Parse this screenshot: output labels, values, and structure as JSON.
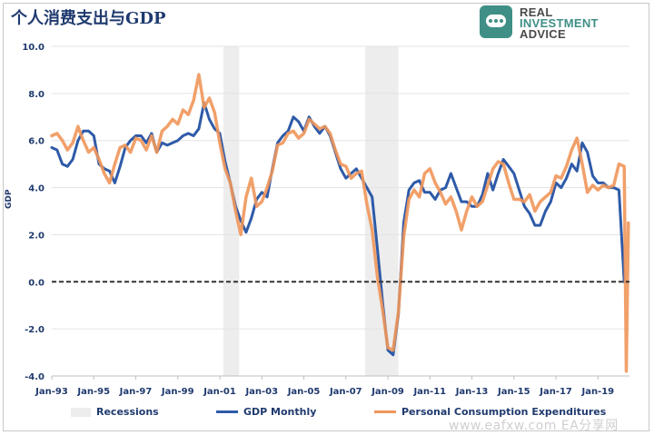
{
  "title": "个人消费支出与GDP",
  "logo": {
    "line1": "REAL",
    "line2": "INVESTMENT",
    "line3": "ADVICE"
  },
  "watermark": "www.eafxw.com  EA分享网",
  "chart_data": {
    "type": "line",
    "title": "个人消费支出与GDP",
    "xlabel": "",
    "ylabel": "GDP",
    "ylim": [
      -4.0,
      10.0
    ],
    "yticks": [
      -4.0,
      -2.0,
      0.0,
      2.0,
      4.0,
      6.0,
      8.0,
      10.0
    ],
    "ytick_labels": [
      "-4.0",
      "-2.0",
      "0.0",
      "2.0",
      "4.0",
      "6.0",
      "8.0",
      "10.0"
    ],
    "xlim": [
      1993.0,
      2020.5
    ],
    "xticks": [
      1993,
      1995,
      1997,
      1999,
      2001,
      2003,
      2005,
      2007,
      2009,
      2011,
      2013,
      2015,
      2017,
      2019
    ],
    "xtick_labels": [
      "Jan-93",
      "Jan-95",
      "Jan-97",
      "Jan-99",
      "Jan-01",
      "Jan-03",
      "Jan-05",
      "Jan-07",
      "Jan-09",
      "Jan-11",
      "Jan-13",
      "Jan-15",
      "Jan-17",
      "Jan-19"
    ],
    "grid": "horizontal",
    "legend": "bottom",
    "recessions": [
      [
        2001.17,
        2001.92
      ],
      [
        2007.92,
        2009.5
      ]
    ],
    "zero_line": 0.0,
    "series": [
      {
        "name": "GDP Monthly",
        "color": "#2e5aa8",
        "x": [
          1993.0,
          1993.25,
          1993.5,
          1993.75,
          1994.0,
          1994.25,
          1994.5,
          1994.75,
          1995.0,
          1995.25,
          1995.5,
          1995.75,
          1996.0,
          1996.25,
          1996.5,
          1996.75,
          1997.0,
          1997.25,
          1997.5,
          1997.75,
          1998.0,
          1998.25,
          1998.5,
          1998.75,
          1999.0,
          1999.25,
          1999.5,
          1999.75,
          2000.0,
          2000.25,
          2000.5,
          2000.75,
          2001.0,
          2001.25,
          2001.5,
          2001.75,
          2002.0,
          2002.25,
          2002.5,
          2002.75,
          2003.0,
          2003.25,
          2003.5,
          2003.75,
          2004.0,
          2004.25,
          2004.5,
          2004.75,
          2005.0,
          2005.25,
          2005.5,
          2005.75,
          2006.0,
          2006.25,
          2006.5,
          2006.75,
          2007.0,
          2007.25,
          2007.5,
          2007.75,
          2008.0,
          2008.25,
          2008.5,
          2008.75,
          2009.0,
          2009.25,
          2009.5,
          2009.75,
          2010.0,
          2010.25,
          2010.5,
          2010.75,
          2011.0,
          2011.25,
          2011.5,
          2011.75,
          2012.0,
          2012.25,
          2012.5,
          2012.75,
          2013.0,
          2013.25,
          2013.5,
          2013.75,
          2014.0,
          2014.25,
          2014.5,
          2014.75,
          2015.0,
          2015.25,
          2015.5,
          2015.75,
          2016.0,
          2016.25,
          2016.5,
          2016.75,
          2017.0,
          2017.25,
          2017.5,
          2017.75,
          2018.0,
          2018.25,
          2018.5,
          2018.75,
          2019.0,
          2019.25,
          2019.5,
          2019.75,
          2020.0,
          2020.25
        ],
        "values": [
          5.7,
          5.6,
          5.0,
          4.9,
          5.2,
          6.0,
          6.4,
          6.4,
          6.2,
          5.0,
          4.8,
          4.7,
          4.2,
          4.9,
          5.7,
          6.0,
          6.2,
          6.2,
          5.9,
          6.3,
          5.5,
          5.9,
          5.8,
          5.9,
          6.0,
          6.2,
          6.3,
          6.2,
          6.5,
          7.6,
          6.9,
          6.5,
          6.3,
          5.1,
          4.2,
          3.2,
          2.6,
          2.1,
          2.7,
          3.5,
          3.8,
          3.6,
          4.8,
          5.9,
          6.2,
          6.4,
          7.0,
          6.8,
          6.4,
          7.0,
          6.6,
          6.3,
          6.6,
          6.2,
          5.5,
          4.8,
          4.4,
          4.6,
          4.8,
          4.4,
          4.0,
          3.6,
          1.4,
          -0.9,
          -2.9,
          -3.1,
          -1.4,
          2.5,
          3.9,
          4.2,
          4.3,
          3.8,
          3.8,
          3.5,
          3.9,
          4.0,
          4.6,
          4.0,
          3.4,
          3.4,
          3.2,
          3.2,
          3.7,
          4.6,
          3.9,
          4.6,
          5.2,
          4.9,
          4.6,
          3.9,
          3.2,
          2.9,
          2.4,
          2.4,
          3.0,
          3.4,
          4.2,
          4.0,
          4.4,
          5.0,
          4.7,
          5.9,
          5.5,
          4.5,
          4.2,
          4.2,
          4.0,
          4.0,
          3.9,
          0.0
        ]
      },
      {
        "name": "Personal Consumption Expenditures",
        "color": "#f0965a",
        "x": [
          1993.0,
          1993.25,
          1993.5,
          1993.75,
          1994.0,
          1994.25,
          1994.5,
          1994.75,
          1995.0,
          1995.25,
          1995.5,
          1995.75,
          1996.0,
          1996.25,
          1996.5,
          1996.75,
          1997.0,
          1997.25,
          1997.5,
          1997.75,
          1998.0,
          1998.25,
          1998.5,
          1998.75,
          1999.0,
          1999.25,
          1999.5,
          1999.75,
          2000.0,
          2000.25,
          2000.5,
          2000.75,
          2001.0,
          2001.25,
          2001.5,
          2001.75,
          2002.0,
          2002.25,
          2002.5,
          2002.75,
          2003.0,
          2003.25,
          2003.5,
          2003.75,
          2004.0,
          2004.25,
          2004.5,
          2004.75,
          2005.0,
          2005.25,
          2005.5,
          2005.75,
          2006.0,
          2006.25,
          2006.5,
          2006.75,
          2007.0,
          2007.25,
          2007.5,
          2007.75,
          2008.0,
          2008.25,
          2008.5,
          2008.75,
          2009.0,
          2009.25,
          2009.5,
          2009.75,
          2010.0,
          2010.25,
          2010.5,
          2010.75,
          2011.0,
          2011.25,
          2011.5,
          2011.75,
          2012.0,
          2012.25,
          2012.5,
          2012.75,
          2013.0,
          2013.25,
          2013.5,
          2013.75,
          2014.0,
          2014.25,
          2014.5,
          2014.75,
          2015.0,
          2015.25,
          2015.5,
          2015.75,
          2016.0,
          2016.25,
          2016.5,
          2016.75,
          2017.0,
          2017.25,
          2017.5,
          2017.75,
          2018.0,
          2018.25,
          2018.5,
          2018.75,
          2019.0,
          2019.25,
          2019.5,
          2019.75,
          2020.0,
          2020.25,
          2020.35,
          2020.45
        ],
        "values": [
          6.2,
          6.3,
          6.0,
          5.6,
          5.9,
          6.6,
          6.0,
          5.5,
          5.7,
          5.2,
          4.6,
          4.2,
          5.0,
          5.7,
          5.8,
          5.5,
          6.1,
          6.0,
          5.6,
          6.2,
          5.5,
          6.4,
          6.6,
          6.9,
          6.7,
          7.3,
          7.1,
          7.7,
          8.8,
          7.4,
          7.8,
          7.2,
          5.9,
          4.8,
          4.2,
          3.0,
          2.0,
          3.6,
          4.4,
          3.2,
          3.4,
          4.0,
          4.7,
          5.8,
          5.9,
          6.3,
          6.4,
          6.1,
          6.3,
          6.9,
          6.7,
          6.5,
          6.6,
          6.3,
          5.6,
          5.0,
          4.9,
          4.4,
          4.6,
          4.7,
          3.3,
          2.2,
          0.2,
          -1.2,
          -2.8,
          -2.9,
          -1.3,
          1.9,
          3.5,
          3.9,
          3.6,
          4.6,
          4.8,
          4.2,
          3.8,
          3.3,
          3.6,
          3.0,
          2.2,
          3.0,
          3.6,
          3.2,
          3.4,
          4.1,
          4.8,
          5.1,
          5.0,
          4.2,
          3.5,
          3.5,
          3.4,
          3.7,
          3.0,
          3.4,
          3.6,
          3.8,
          4.5,
          4.4,
          4.9,
          5.6,
          6.1,
          5.0,
          3.8,
          4.1,
          3.9,
          4.1,
          4.0,
          4.1,
          5.0,
          4.9,
          -3.8,
          2.5
        ]
      }
    ]
  },
  "legend": {
    "recessions": "Recessions",
    "gdp": "GDP Monthly",
    "pce": "Personal Consumption Expenditures"
  },
  "colors": {
    "recession_fill": "#ededed",
    "grid": "#e3e3e3",
    "axis_text": "#1f3a6e",
    "zero_line": "#333333"
  }
}
